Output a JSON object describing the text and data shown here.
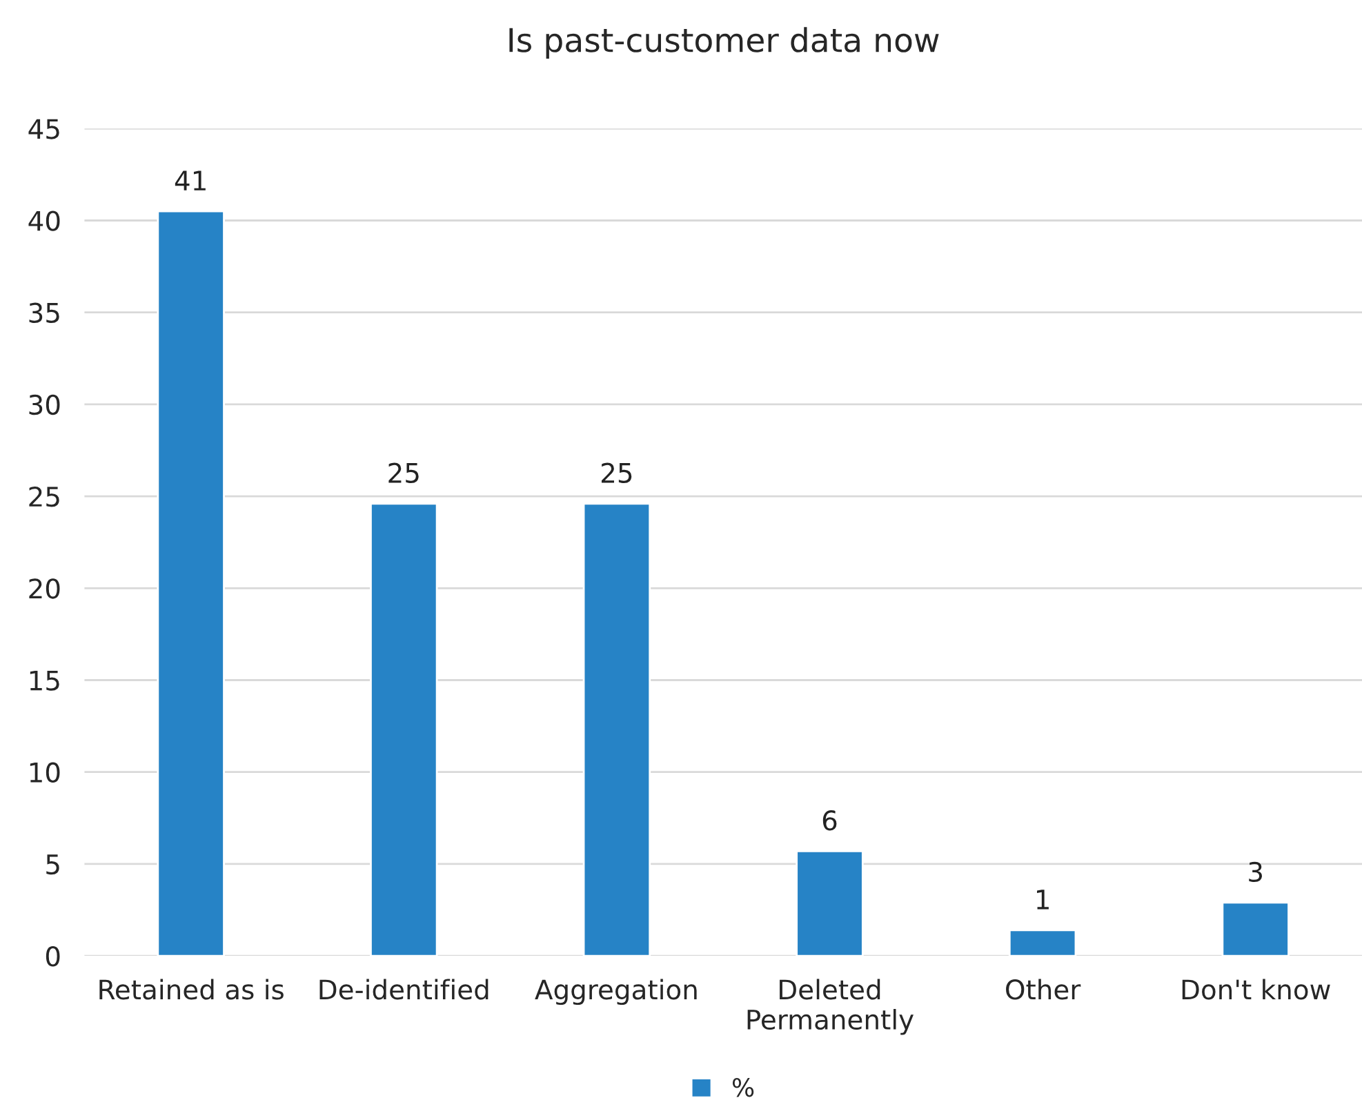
{
  "chart_data": {
    "type": "bar",
    "title": "Is past-customer data now",
    "categories": [
      "Retained as is",
      "De-identified",
      "Aggregation",
      "Deleted Permanently",
      "Other",
      "Don't know"
    ],
    "series": [
      {
        "name": "%",
        "color": "#2683c6",
        "values": [
          40.5,
          24.6,
          24.6,
          5.7,
          1.4,
          2.9
        ],
        "value_labels": [
          "41",
          "25",
          "25",
          "6",
          "1",
          "3"
        ]
      }
    ],
    "ylim": [
      0,
      45
    ],
    "yticks": [
      0,
      5,
      10,
      15,
      20,
      25,
      30,
      35,
      40,
      45
    ],
    "grid": "y",
    "legend": "bottom"
  }
}
